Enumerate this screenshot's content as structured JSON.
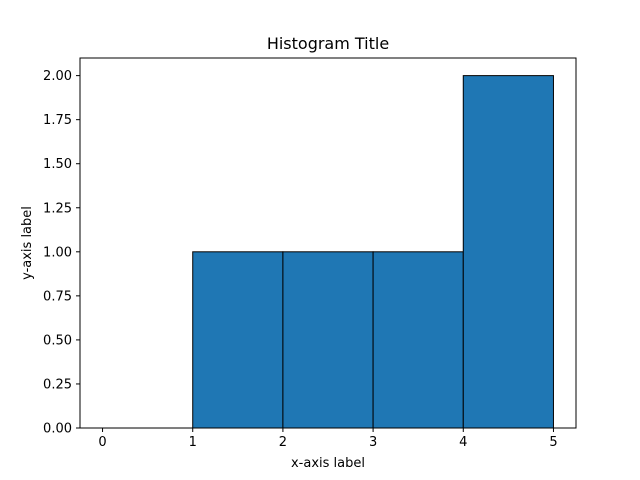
{
  "chart_data": {
    "type": "bar",
    "subtype": "histogram",
    "title": "Histogram Title",
    "xlabel": "x-axis label",
    "ylabel": "y-axis label",
    "bin_edges": [
      0,
      1,
      2,
      3,
      4,
      5
    ],
    "values": [
      0,
      1,
      1,
      1,
      2
    ],
    "xlim": [
      -0.25,
      5.25
    ],
    "ylim": [
      0,
      2.1
    ],
    "xticks": [
      0,
      1,
      2,
      3,
      4,
      5
    ],
    "xtick_labels": [
      "0",
      "1",
      "2",
      "3",
      "4",
      "5"
    ],
    "yticks": [
      0,
      0.25,
      0.5,
      0.75,
      1.0,
      1.25,
      1.5,
      1.75,
      2.0
    ],
    "ytick_labels": [
      "0.00",
      "0.25",
      "0.50",
      "0.75",
      "1.00",
      "1.25",
      "1.50",
      "1.75",
      "2.00"
    ],
    "grid": false,
    "legend": "none",
    "bar_color": "#1f77b4",
    "edge_color": "#000000"
  }
}
